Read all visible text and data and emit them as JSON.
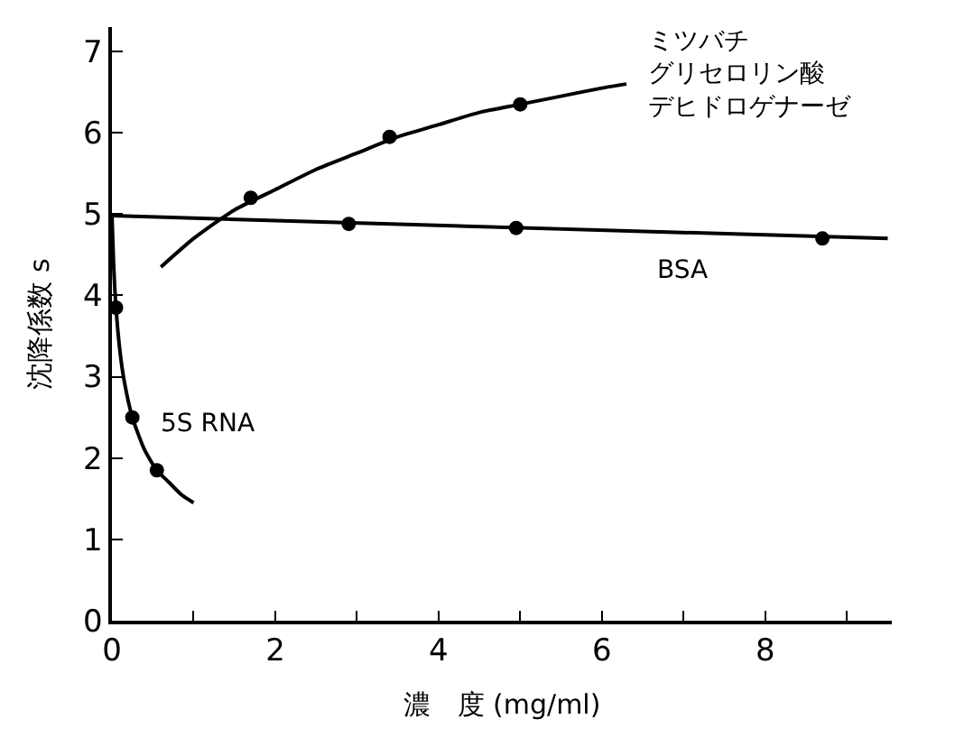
{
  "chart_data": {
    "type": "scatter",
    "xlabel": "濃　度 (mg/ml)",
    "ylabel": "沈降係数 s",
    "xlim": [
      0,
      9.55
    ],
    "ylim": [
      0,
      7.3
    ],
    "xticks": [
      0,
      {
        "value": 1,
        "label": null
      },
      2,
      {
        "value": 3,
        "label": null
      },
      4,
      {
        "value": 5,
        "label": null
      },
      6,
      {
        "value": 7,
        "label": null
      },
      8,
      {
        "value": 9,
        "label": null
      }
    ],
    "yticks": [
      0,
      1,
      2,
      3,
      4,
      5,
      6,
      7
    ],
    "legend": false,
    "marker": "circle",
    "series": [
      {
        "type": "line",
        "name": "5S RNA",
        "color": "#000000",
        "marker": "none",
        "x": [
          0,
          0.02,
          0.05,
          0.1,
          0.15,
          0.25,
          0.4,
          0.55,
          0.7,
          0.85,
          1.0
        ],
        "values": [
          5,
          4.4,
          3.85,
          3.3,
          2.95,
          2.5,
          2.1,
          1.85,
          1.7,
          1.55,
          1.45
        ]
      },
      {
        "color": "#000000",
        "x": [
          0.05,
          0.25,
          0.55
        ],
        "values": [
          3.85,
          2.5,
          1.85
        ]
      },
      {
        "type": "line",
        "name": "ミツバチグリセロリン酸デヒドロゲナーゼ",
        "color": "#000000",
        "marker": "none",
        "x": [
          0.6,
          1.0,
          1.5,
          2,
          2.5,
          3,
          3.5,
          4,
          4.5,
          5,
          5.5,
          6,
          6.3
        ],
        "values": [
          4.35,
          4.7,
          5.05,
          5.3,
          5.55,
          5.75,
          5.95,
          6.1,
          6.25,
          6.35,
          6.45,
          6.55,
          6.6
        ]
      },
      {
        "color": "#000000",
        "x": [
          1.7,
          3.4,
          5.0
        ],
        "values": [
          5.2,
          5.95,
          6.35
        ]
      },
      {
        "type": "line",
        "name": "BSA",
        "color": "#000000",
        "marker": "none",
        "x": [
          0,
          9.5
        ],
        "values": [
          4.98,
          4.7
        ]
      },
      {
        "color": "#000000",
        "x": [
          2.9,
          4.95,
          8.7
        ],
        "values": [
          4.88,
          4.83,
          4.7
        ]
      }
    ]
  }
}
